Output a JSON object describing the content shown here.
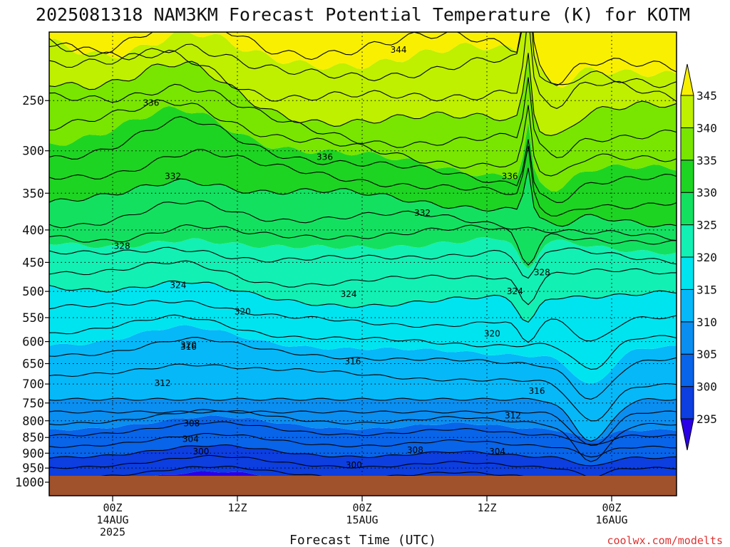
{
  "chart_data": {
    "type": "heatmap",
    "title": "2025081318 NAM3KM Forecast Potential Temperature (K) for KOTM",
    "xlabel": "Forecast Time (UTC)",
    "ylabel": "",
    "credit": "coolwx.com/modelts",
    "y_scale": "log-pressure",
    "ylim": [
      1000,
      200
    ],
    "xlim_hours": [
      -5,
      45
    ],
    "y_ticks": [
      250,
      300,
      350,
      400,
      450,
      500,
      550,
      600,
      650,
      700,
      750,
      800,
      850,
      900,
      950,
      1000
    ],
    "x_ticks": [
      {
        "hour": 0,
        "lines": [
          "00Z",
          "14AUG",
          "2025"
        ]
      },
      {
        "hour": 12,
        "lines": [
          "12Z"
        ]
      },
      {
        "hour": 24,
        "lines": [
          "00Z",
          "15AUG"
        ]
      },
      {
        "hour": 36,
        "lines": [
          "12Z"
        ]
      },
      {
        "hour": 48,
        "lines": [
          "00Z",
          "16AUG"
        ]
      }
    ],
    "colorbar": {
      "levels": [
        295,
        300,
        305,
        310,
        315,
        320,
        325,
        330,
        335,
        340,
        345
      ],
      "labels": [
        "295",
        "300",
        "305",
        "310",
        "315",
        "320",
        "325",
        "330",
        "335",
        "340",
        "345"
      ],
      "colors": [
        "#2a00e6",
        "#0c3ee0",
        "#0864e8",
        "#0a8ef0",
        "#06b8f8",
        "#00e4f0",
        "#12f0b4",
        "#14e060",
        "#1ed422",
        "#78e600",
        "#bef000",
        "#f8f000"
      ],
      "extend": "both"
    },
    "contour_interval_K": 2,
    "contour_labels": [
      {
        "value": 344,
        "hour": 27.5,
        "p": 208
      },
      {
        "value": 336,
        "hour": 3.7,
        "p": 252
      },
      {
        "value": 336,
        "hour": 20.4,
        "p": 307
      },
      {
        "value": 336,
        "hour": 38.2,
        "p": 329
      },
      {
        "value": 332,
        "hour": 5.8,
        "p": 329
      },
      {
        "value": 332,
        "hour": 29.8,
        "p": 376
      },
      {
        "value": 328,
        "hour": 0.9,
        "p": 424
      },
      {
        "value": 328,
        "hour": 41.3,
        "p": 467
      },
      {
        "value": 324,
        "hour": 6.3,
        "p": 489
      },
      {
        "value": 324,
        "hour": 22.7,
        "p": 505
      },
      {
        "value": 324,
        "hour": 38.7,
        "p": 500
      },
      {
        "value": 320,
        "hour": 12.5,
        "p": 538
      },
      {
        "value": 320,
        "hour": 36.5,
        "p": 583
      },
      {
        "value": 320,
        "hour": 7.3,
        "p": 608
      },
      {
        "value": 316,
        "hour": 7.3,
        "p": 612
      },
      {
        "value": 316,
        "hour": 23.1,
        "p": 645
      },
      {
        "value": 316,
        "hour": 40.8,
        "p": 718
      },
      {
        "value": 312,
        "hour": 4.8,
        "p": 698
      },
      {
        "value": 312,
        "hour": 38.5,
        "p": 785
      },
      {
        "value": 308,
        "hour": 7.6,
        "p": 808
      },
      {
        "value": 308,
        "hour": 29.1,
        "p": 890
      },
      {
        "value": 304,
        "hour": 7.5,
        "p": 855
      },
      {
        "value": 304,
        "hour": 37.0,
        "p": 895
      },
      {
        "value": 300,
        "hour": 8.5,
        "p": 895
      },
      {
        "value": 300,
        "hour": 23.2,
        "p": 940
      }
    ]
  }
}
